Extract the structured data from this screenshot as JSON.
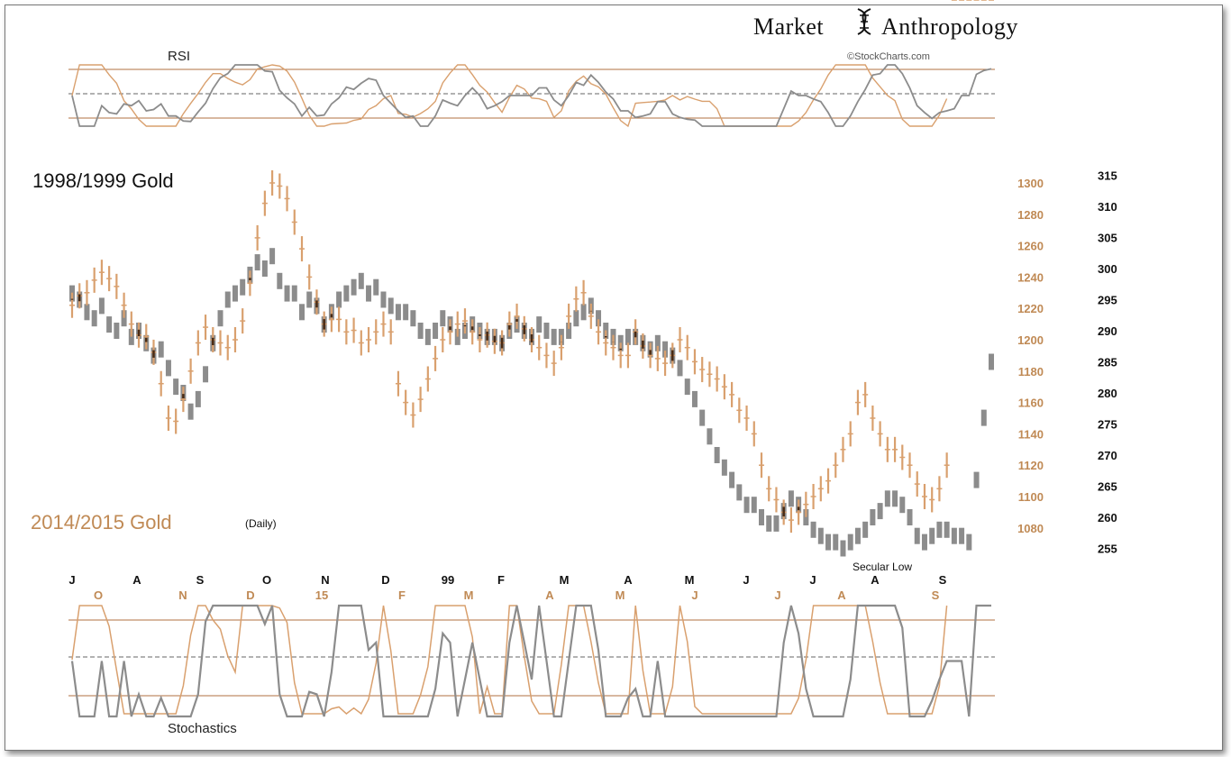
{
  "header": {
    "brand_left": "Market",
    "brand_right": "Anthropology",
    "credit": "©StockCharts.com"
  },
  "panels": {
    "rsi_label": "RSI",
    "stoch_label": "Stochastics"
  },
  "chart_data": {
    "type": "bar",
    "title": "1998/1999 Gold",
    "subtitle": "2014/2015 Gold",
    "subtitle_note": "(Daily)",
    "annotation": "Secular Low",
    "colors": {
      "series_1998": "#8c8c8c",
      "series_2014": "#d9a06e",
      "overlap": "#4a2a12",
      "axis_gold": "#c08a55"
    },
    "y_axis_2014_ticks": [
      "1300",
      "1280",
      "1260",
      "1240",
      "1220",
      "1200",
      "1180",
      "1160",
      "1140",
      "1120",
      "1100",
      "1080"
    ],
    "y_axis_1998_ticks": [
      "315",
      "310",
      "305",
      "300",
      "295",
      "290",
      "285",
      "280",
      "275",
      "270",
      "265",
      "260",
      "255"
    ],
    "x_months_1998": [
      "J",
      "A",
      "S",
      "O",
      "N",
      "D",
      "99",
      "F",
      "M",
      "A",
      "M",
      "J",
      "J",
      "A",
      "S"
    ],
    "x_months_2014": [
      "O",
      "N",
      "D",
      "15",
      "F",
      "M",
      "A",
      "M",
      "J",
      "J",
      "A",
      "S"
    ],
    "rsi_levels": [
      70,
      50,
      30
    ],
    "stoch_levels": [
      80,
      50,
      20
    ],
    "series": [
      {
        "name": "1998/1999 Gold",
        "values": [
          296,
          295,
          293,
          292,
          294,
          291,
          290,
          292,
          289,
          290,
          288,
          286,
          287,
          284,
          281,
          280,
          277,
          279,
          283,
          288,
          292,
          295,
          296,
          297,
          299,
          301,
          300,
          302,
          298,
          296,
          296,
          293,
          295,
          294,
          291,
          293,
          295,
          296,
          297,
          298,
          296,
          297,
          295,
          294,
          293,
          293,
          292,
          290,
          289,
          290,
          292,
          291,
          289,
          290,
          291,
          290,
          289,
          289,
          288,
          290,
          291,
          290,
          289,
          291,
          290,
          289,
          289,
          290,
          292,
          293,
          294,
          292,
          290,
          289,
          288,
          289,
          289,
          288,
          287,
          288,
          287,
          286,
          284,
          281,
          279,
          276,
          273,
          270,
          268,
          266,
          264,
          262,
          262,
          260,
          259,
          259,
          261,
          263,
          262,
          260,
          258,
          257,
          256,
          256,
          255,
          256,
          257,
          258,
          260,
          261,
          263,
          263,
          262,
          260,
          257,
          256,
          257,
          258,
          258,
          257,
          257,
          256,
          266,
          276,
          285
        ]
      },
      {
        "name": "2014/2015 Gold",
        "values": [
          1222,
          1228,
          1230,
          1238,
          1243,
          1239,
          1234,
          1222,
          1210,
          1203,
          1202,
          1192,
          1172,
          1150,
          1148,
          1162,
          1180,
          1198,
          1208,
          1200,
          1198,
          1195,
          1200,
          1212,
          1236,
          1265,
          1287,
          1300,
          1298,
          1290,
          1275,
          1258,
          1240,
          1224,
          1210,
          1213,
          1213,
          1205,
          1206,
          1198,
          1200,
          1205,
          1210,
          1205,
          1172,
          1160,
          1152,
          1162,
          1175,
          1188,
          1200,
          1205,
          1210,
          1212,
          1205,
          1200,
          1203,
          1199,
          1198,
          1210,
          1215,
          1207,
          1200,
          1195,
          1190,
          1185,
          1195,
          1215,
          1226,
          1230,
          1215,
          1205,
          1198,
          1195,
          1190,
          1190,
          1205,
          1196,
          1190,
          1188,
          1185,
          1190,
          1200,
          1195,
          1186,
          1181,
          1178,
          1175,
          1170,
          1165,
          1155,
          1150,
          1140,
          1120,
          1105,
          1098,
          1090,
          1085,
          1090,
          1095,
          1100,
          1105,
          1110,
          1120,
          1130,
          1140,
          1160,
          1165,
          1150,
          1140,
          1130,
          1130,
          1125,
          1120,
          1108,
          1100,
          1098,
          1105,
          1120
        ]
      }
    ]
  }
}
